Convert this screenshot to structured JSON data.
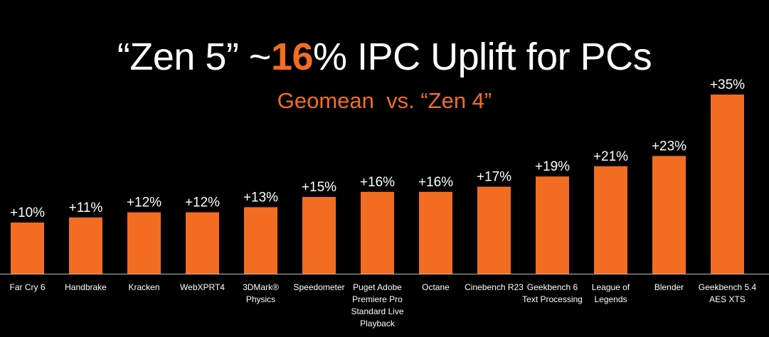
{
  "title": {
    "prefix": "“Zen 5” ~",
    "highlight": "16",
    "suffix": "% IPC Uplift for PCs"
  },
  "subtitle": "Geomean  vs. “Zen 4”",
  "colors": {
    "background": "#000000",
    "bar": "#f26d21",
    "accent": "#f26d21",
    "text": "#ffffff",
    "baseline": "#bfbfbf"
  },
  "chart_data": {
    "type": "bar",
    "title": "“Zen 5” ~16% IPC Uplift for PCs",
    "subtitle": "Geomean  vs. “Zen 4”",
    "categories": [
      [
        "Far Cry 6"
      ],
      [
        "Handbrake"
      ],
      [
        "Kracken"
      ],
      [
        "WebXPRT4"
      ],
      [
        "3DMark®",
        "Physics"
      ],
      [
        "Speedometer"
      ],
      [
        "Puget Adobe",
        "Premiere Pro",
        "Standard Live",
        "Playback"
      ],
      [
        "Octane"
      ],
      [
        "Cinebench R23"
      ],
      [
        "Geekbench 6",
        "Text Processing"
      ],
      [
        "League of",
        "Legends"
      ],
      [
        "Blender"
      ],
      [
        "Geekbench 5.4",
        "AES XTS"
      ]
    ],
    "values": [
      10,
      11,
      12,
      12,
      13,
      15,
      16,
      16,
      17,
      19,
      21,
      23,
      35
    ],
    "data_labels": [
      "+10%",
      "+11%",
      "+12%",
      "+12%",
      "+13%",
      "+15%",
      "+16%",
      "+16%",
      "+17%",
      "+19%",
      "+21%",
      "+23%",
      "+35%"
    ],
    "xlabel": "",
    "ylabel": "",
    "ylim": [
      0,
      35
    ],
    "grid": false,
    "legend": "none"
  }
}
